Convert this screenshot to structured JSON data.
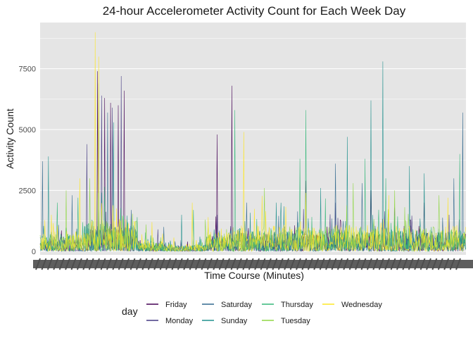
{
  "chart_data": {
    "type": "line",
    "title": "24-hour Accelerometer Activity Count for Each Week Day",
    "xlabel": "Time Course (Minutes)",
    "ylabel": "Activity Count",
    "x_range": [
      1,
      1440
    ],
    "ylim": [
      -150,
      9400
    ],
    "y_ticks": [
      0,
      2500,
      5000,
      7500
    ],
    "y_tick_labels": [
      "0",
      "2500",
      "5000",
      "7500"
    ],
    "grid": true,
    "background": "#e5e5e5",
    "legend": {
      "title": "day",
      "position": "bottom",
      "layout": "4 columns, 2 rows"
    },
    "series": [
      {
        "name": "Friday",
        "color": "#440154",
        "peaks": [
          [
            195,
            7400
          ],
          [
            220,
            6300
          ],
          [
            240,
            6100
          ],
          [
            265,
            6000
          ],
          [
            285,
            6600
          ],
          [
            600,
            4800
          ],
          [
            650,
            6800
          ],
          [
            900,
            2900
          ],
          [
            1120,
            2500
          ],
          [
            1300,
            2000
          ]
        ]
      },
      {
        "name": "Monday",
        "color": "#443a83",
        "peaks": [
          [
            160,
            4400
          ],
          [
            210,
            6400
          ],
          [
            275,
            7200
          ],
          [
            245,
            5900
          ],
          [
            400,
            900
          ],
          [
            600,
            1500
          ],
          [
            1000,
            2000
          ],
          [
            1200,
            1800
          ]
        ]
      },
      {
        "name": "Saturday",
        "color": "#31688e",
        "peaks": [
          [
            10,
            3700
          ],
          [
            110,
            2300
          ],
          [
            230,
            5700
          ],
          [
            310,
            1700
          ],
          [
            420,
            1000
          ],
          [
            700,
            2000
          ],
          [
            1000,
            3600
          ],
          [
            1090,
            2800
          ],
          [
            1400,
            3000
          ],
          [
            1430,
            5700
          ]
        ]
      },
      {
        "name": "Sunday",
        "color": "#21908d",
        "peaks": [
          [
            30,
            3900
          ],
          [
            200,
            6900
          ],
          [
            250,
            5300
          ],
          [
            480,
            1500
          ],
          [
            800,
            2000
          ],
          [
            950,
            2600
          ],
          [
            1040,
            4700
          ],
          [
            1120,
            6200
          ],
          [
            1160,
            7800
          ],
          [
            1250,
            3500
          ],
          [
            1300,
            3200
          ]
        ]
      },
      {
        "name": "Thursday",
        "color": "#35b779",
        "peaks": [
          [
            60,
            2000
          ],
          [
            130,
            2200
          ],
          [
            330,
            1400
          ],
          [
            520,
            1700
          ],
          [
            660,
            5800
          ],
          [
            880,
            3800
          ],
          [
            900,
            5800
          ],
          [
            1100,
            3800
          ],
          [
            1170,
            3000
          ],
          [
            1420,
            4000
          ]
        ]
      },
      {
        "name": "Tuesday",
        "color": "#8fd744",
        "peaks": [
          [
            90,
            2500
          ],
          [
            170,
            3000
          ],
          [
            360,
            1100
          ],
          [
            560,
            1300
          ],
          [
            760,
            2600
          ],
          [
            1060,
            2800
          ],
          [
            1200,
            2500
          ],
          [
            1350,
            2300
          ]
        ]
      },
      {
        "name": "Wednesday",
        "color": "#fde725",
        "peaks": [
          [
            40,
            1500
          ],
          [
            135,
            3000
          ],
          [
            188,
            9000
          ],
          [
            200,
            8000
          ],
          [
            380,
            1200
          ],
          [
            515,
            2000
          ],
          [
            570,
            1400
          ],
          [
            690,
            4900
          ],
          [
            900,
            2400
          ],
          [
            1180,
            2300
          ],
          [
            1380,
            2200
          ]
        ]
      }
    ]
  }
}
